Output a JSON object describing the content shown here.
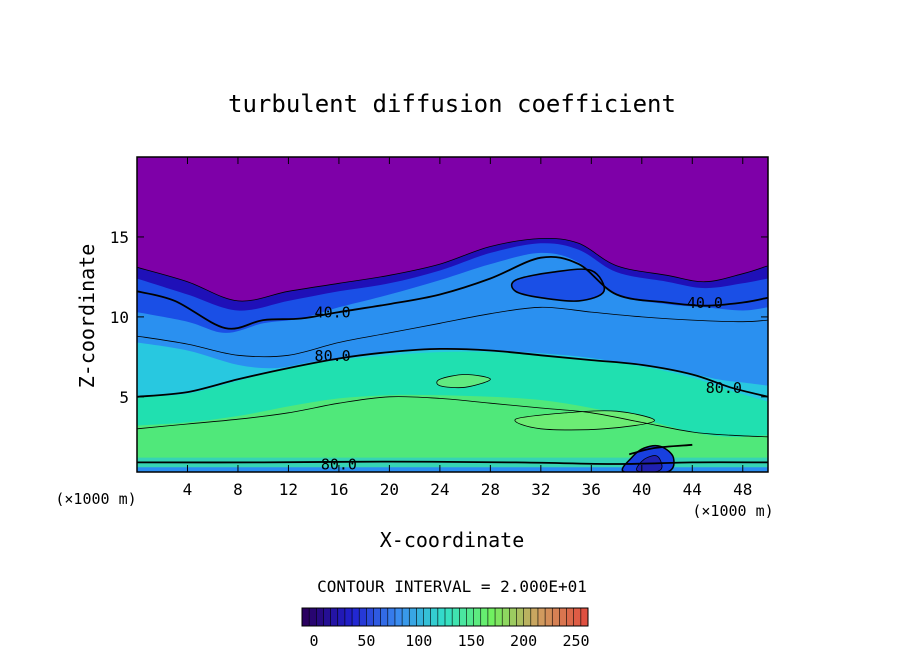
{
  "chart_data": {
    "type": "contour",
    "title": "turbulent diffusion coefficient",
    "xlabel": "X-coordinate",
    "ylabel": "Z-coordinate",
    "x_unit_left": "(×1000 m)",
    "x_unit_right": "(×1000 m)",
    "xlim": [
      0,
      50
    ],
    "ylim": [
      0.3,
      20
    ],
    "x_ticks": [
      4,
      8,
      12,
      16,
      20,
      24,
      28,
      32,
      36,
      40,
      44,
      48
    ],
    "y_ticks": [
      5,
      10,
      15
    ],
    "contour_interval_text": "CONTOUR INTERVAL = 2.000E+01",
    "contour_labels": [
      {
        "text": "40.0",
        "x": 15.5,
        "y": 10.2
      },
      {
        "text": "40.0",
        "x": 45.0,
        "y": 10.8
      },
      {
        "text": "80.0",
        "x": 15.5,
        "y": 7.5
      },
      {
        "text": "80.0",
        "x": 46.5,
        "y": 5.5
      },
      {
        "text": "80.0",
        "x": 16.0,
        "y": 0.7
      }
    ],
    "colorbar": {
      "min": 0,
      "max": 250,
      "ticks": [
        0,
        50,
        100,
        150,
        200,
        250
      ],
      "colors": [
        "#2a0060",
        "#2020d0",
        "#3a8cf0",
        "#32e0c8",
        "#70f060",
        "#d0a060",
        "#e05040"
      ]
    },
    "colors": {
      "top": "#7e00a8",
      "band_dark": "#1f10b8",
      "band_blue": "#1a4fe6",
      "band_mid": "#2a90f0",
      "band_cyan": "#28c8e0",
      "band_teal": "#20e0b0",
      "core_green": "#50e87a"
    }
  }
}
